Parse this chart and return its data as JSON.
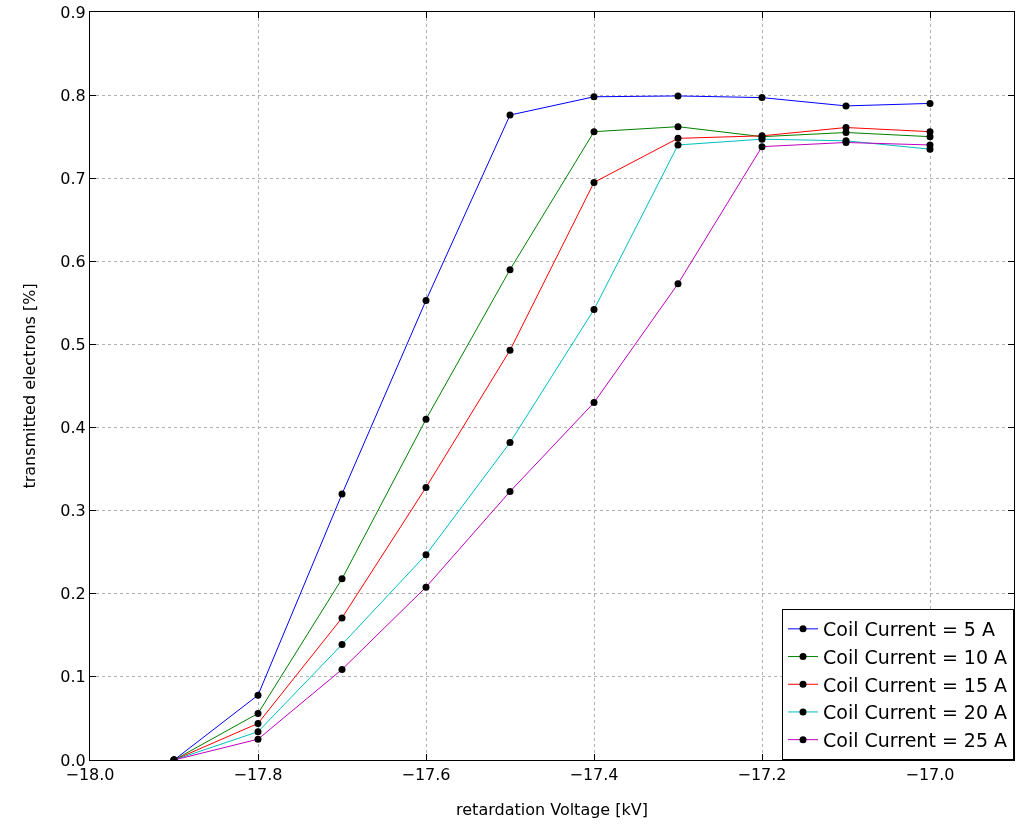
{
  "chart_data": {
    "type": "line",
    "xlabel": "retardation Voltage [kV]",
    "ylabel": "transmitted electrons [%]",
    "x": [
      -17.9,
      -17.8,
      -17.7,
      -17.6,
      -17.5,
      -17.4,
      -17.3,
      -17.2,
      -17.1,
      -17.0
    ],
    "series": [
      {
        "name": "Coil Current = 5 A",
        "color": "#0000ff",
        "values": [
          0,
          0.078,
          0.32,
          0.553,
          0.776,
          0.798,
          0.799,
          0.797,
          0.787,
          0.79
        ]
      },
      {
        "name": "Coil Current = 10 A",
        "color": "#008000",
        "values": [
          0,
          0.056,
          0.218,
          0.41,
          0.59,
          0.756,
          0.762,
          0.75,
          0.755,
          0.75
        ]
      },
      {
        "name": "Coil Current = 15 A",
        "color": "#ff0000",
        "values": [
          0,
          0.044,
          0.171,
          0.328,
          0.493,
          0.695,
          0.748,
          0.751,
          0.761,
          0.756
        ]
      },
      {
        "name": "Coil Current = 20 A",
        "color": "#00bfbf",
        "values": [
          0,
          0.034,
          0.139,
          0.247,
          0.382,
          0.542,
          0.74,
          0.747,
          0.745,
          0.735
        ]
      },
      {
        "name": "Coil Current = 25 A",
        "color": "#bf00bf",
        "values": [
          0,
          0.025,
          0.109,
          0.208,
          0.323,
          0.43,
          0.573,
          0.738,
          0.743,
          0.74
        ]
      }
    ],
    "xlim": [
      -18.0,
      -16.9
    ],
    "xticks": [
      {
        "value": -18.0,
        "label": "−18.0"
      },
      {
        "value": -17.8,
        "label": "−17.8"
      },
      {
        "value": -17.6,
        "label": "−17.6"
      },
      {
        "value": -17.4,
        "label": "−17.4"
      },
      {
        "value": -17.2,
        "label": "−17.2"
      },
      {
        "value": -17.0,
        "label": "−17.0"
      }
    ],
    "ylim": [
      0,
      0.9
    ],
    "yticks": [
      {
        "value": 0,
        "label": "0.0"
      },
      0.1,
      0.2,
      0.3,
      0.4,
      0.5,
      0.6,
      0.7,
      0.8,
      0.9
    ],
    "grid": true,
    "legend": "bottom right",
    "marker": "circle",
    "line_style": "solid"
  }
}
